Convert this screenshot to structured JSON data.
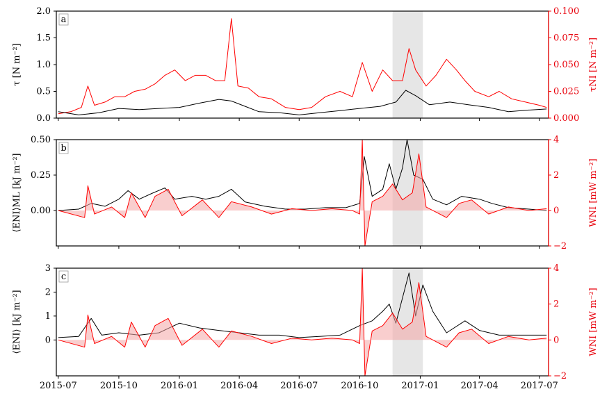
{
  "colors": {
    "left": "#000000",
    "right": "#ff0000",
    "fill": "#f4a6a6",
    "shade": "#e6e6e6",
    "raw": "#c8c8c8"
  },
  "x_ticks": [
    "2015-07",
    "2015-10",
    "2016-01",
    "2016-04",
    "2016-07",
    "2016-10",
    "2017-01",
    "2017-04",
    "2017-07"
  ],
  "chart_data": [
    {
      "type": "line",
      "panel_label": "a",
      "ylabel": "τ [N m⁻²]",
      "ylabel_right": "τNI [N m⁻²]",
      "ylim": [
        0,
        2.0
      ],
      "ylim_right": [
        0,
        0.1
      ],
      "yticks": [
        "0.0",
        "0.5",
        "1.0",
        "1.5",
        "2.0"
      ],
      "yticks_right": [
        "0.000",
        "0.025",
        "0.050",
        "0.075",
        "0.100"
      ],
      "xlim": [
        "2015-06-28",
        "2017-07-15"
      ],
      "shaded_span": [
        "2016-11-20",
        "2017-01-05"
      ],
      "series": [
        {
          "axis": "right",
          "color": "#ff0000",
          "points": [
            [
              "2015-07-01",
              0.004
            ],
            [
              "2015-07-20",
              0.006
            ],
            [
              "2015-08-05",
              0.01
            ],
            [
              "2015-08-15",
              0.03
            ],
            [
              "2015-08-25",
              0.012
            ],
            [
              "2015-09-10",
              0.015
            ],
            [
              "2015-09-25",
              0.02
            ],
            [
              "2015-10-10",
              0.02
            ],
            [
              "2015-10-25",
              0.025
            ],
            [
              "2015-11-10",
              0.027
            ],
            [
              "2015-11-25",
              0.032
            ],
            [
              "2015-12-10",
              0.04
            ],
            [
              "2015-12-25",
              0.045
            ],
            [
              "2016-01-10",
              0.035
            ],
            [
              "2016-01-25",
              0.04
            ],
            [
              "2016-02-10",
              0.04
            ],
            [
              "2016-02-25",
              0.035
            ],
            [
              "2016-03-10",
              0.035
            ],
            [
              "2016-03-20",
              0.093
            ],
            [
              "2016-03-30",
              0.03
            ],
            [
              "2016-04-15",
              0.028
            ],
            [
              "2016-05-01",
              0.02
            ],
            [
              "2016-05-20",
              0.018
            ],
            [
              "2016-06-10",
              0.01
            ],
            [
              "2016-07-01",
              0.008
            ],
            [
              "2016-07-20",
              0.01
            ],
            [
              "2016-08-10",
              0.02
            ],
            [
              "2016-09-01",
              0.025
            ],
            [
              "2016-09-20",
              0.02
            ],
            [
              "2016-10-05",
              0.052
            ],
            [
              "2016-10-20",
              0.025
            ],
            [
              "2016-11-05",
              0.045
            ],
            [
              "2016-11-20",
              0.035
            ],
            [
              "2016-12-05",
              0.035
            ],
            [
              "2016-12-15",
              0.065
            ],
            [
              "2016-12-25",
              0.045
            ],
            [
              "2017-01-10",
              0.03
            ],
            [
              "2017-01-25",
              0.04
            ],
            [
              "2017-02-10",
              0.055
            ],
            [
              "2017-02-25",
              0.045
            ],
            [
              "2017-03-10",
              0.035
            ],
            [
              "2017-03-25",
              0.025
            ],
            [
              "2017-04-15",
              0.02
            ],
            [
              "2017-05-01",
              0.025
            ],
            [
              "2017-05-20",
              0.018
            ],
            [
              "2017-06-10",
              0.015
            ],
            [
              "2017-07-01",
              0.012
            ],
            [
              "2017-07-12",
              0.01
            ]
          ]
        },
        {
          "axis": "left",
          "color": "#000000",
          "points": [
            [
              "2015-07-01",
              0.12
            ],
            [
              "2015-08-01",
              0.06
            ],
            [
              "2015-09-01",
              0.1
            ],
            [
              "2015-10-01",
              0.18
            ],
            [
              "2015-11-01",
              0.16
            ],
            [
              "2015-12-01",
              0.18
            ],
            [
              "2016-01-01",
              0.2
            ],
            [
              "2016-02-01",
              0.28
            ],
            [
              "2016-03-01",
              0.35
            ],
            [
              "2016-03-20",
              0.32
            ],
            [
              "2016-04-10",
              0.22
            ],
            [
              "2016-05-01",
              0.12
            ],
            [
              "2016-06-01",
              0.1
            ],
            [
              "2016-07-01",
              0.06
            ],
            [
              "2016-08-01",
              0.1
            ],
            [
              "2016-09-01",
              0.14
            ],
            [
              "2016-10-01",
              0.18
            ],
            [
              "2016-11-01",
              0.22
            ],
            [
              "2016-11-25",
              0.3
            ],
            [
              "2016-12-10",
              0.52
            ],
            [
              "2016-12-25",
              0.42
            ],
            [
              "2017-01-15",
              0.25
            ],
            [
              "2017-02-15",
              0.3
            ],
            [
              "2017-03-15",
              0.25
            ],
            [
              "2017-04-15",
              0.2
            ],
            [
              "2017-05-15",
              0.12
            ],
            [
              "2017-06-15",
              0.15
            ],
            [
              "2017-07-12",
              0.17
            ]
          ]
        }
      ]
    },
    {
      "type": "line",
      "panel_label": "b",
      "ylabel": "⟨ENI⟩ML [kJ m⁻²]",
      "ylabel_right": "WNI [mW m⁻²]",
      "ylim": [
        -0.25,
        0.5
      ],
      "ylim_right": [
        -2,
        4
      ],
      "yticks": [
        "0.00",
        "0.25",
        "0.50"
      ],
      "yticks_right": [
        "−2",
        "0",
        "2",
        "4"
      ],
      "xlim": [
        "2015-06-28",
        "2017-07-15"
      ],
      "shaded_span": [
        "2016-11-20",
        "2017-01-05"
      ],
      "series": [
        {
          "axis": "left",
          "color": "#000000",
          "points": [
            [
              "2015-07-01",
              0.0
            ],
            [
              "2015-08-01",
              0.01
            ],
            [
              "2015-08-20",
              0.05
            ],
            [
              "2015-09-10",
              0.03
            ],
            [
              "2015-10-01",
              0.08
            ],
            [
              "2015-10-15",
              0.14
            ],
            [
              "2015-11-01",
              0.08
            ],
            [
              "2015-11-20",
              0.12
            ],
            [
              "2015-12-10",
              0.16
            ],
            [
              "2015-12-25",
              0.08
            ],
            [
              "2016-01-20",
              0.1
            ],
            [
              "2016-02-10",
              0.08
            ],
            [
              "2016-03-01",
              0.1
            ],
            [
              "2016-03-20",
              0.15
            ],
            [
              "2016-04-10",
              0.06
            ],
            [
              "2016-05-10",
              0.03
            ],
            [
              "2016-06-10",
              0.01
            ],
            [
              "2016-07-10",
              0.01
            ],
            [
              "2016-08-10",
              0.02
            ],
            [
              "2016-09-10",
              0.02
            ],
            [
              "2016-10-01",
              0.05
            ],
            [
              "2016-10-08",
              0.38
            ],
            [
              "2016-10-20",
              0.1
            ],
            [
              "2016-11-05",
              0.15
            ],
            [
              "2016-11-15",
              0.33
            ],
            [
              "2016-11-25",
              0.15
            ],
            [
              "2016-12-05",
              0.3
            ],
            [
              "2016-12-12",
              0.5
            ],
            [
              "2016-12-22",
              0.25
            ],
            [
              "2017-01-05",
              0.22
            ],
            [
              "2017-01-20",
              0.08
            ],
            [
              "2017-02-10",
              0.04
            ],
            [
              "2017-03-05",
              0.1
            ],
            [
              "2017-04-01",
              0.08
            ],
            [
              "2017-04-20",
              0.05
            ],
            [
              "2017-05-15",
              0.02
            ],
            [
              "2017-06-15",
              0.01
            ],
            [
              "2017-07-12",
              0.0
            ]
          ]
        },
        {
          "axis": "right",
          "color": "#ff0000",
          "points": [
            [
              "2015-07-01",
              0.0
            ],
            [
              "2015-08-10",
              -0.4
            ],
            [
              "2015-08-15",
              1.4
            ],
            [
              "2015-08-25",
              -0.2
            ],
            [
              "2015-09-20",
              0.2
            ],
            [
              "2015-10-10",
              -0.4
            ],
            [
              "2015-10-20",
              1.0
            ],
            [
              "2015-11-10",
              -0.4
            ],
            [
              "2015-11-25",
              0.8
            ],
            [
              "2015-12-15",
              1.2
            ],
            [
              "2016-01-05",
              -0.3
            ],
            [
              "2016-02-05",
              0.6
            ],
            [
              "2016-03-01",
              -0.4
            ],
            [
              "2016-03-20",
              0.5
            ],
            [
              "2016-04-20",
              0.2
            ],
            [
              "2016-05-20",
              -0.2
            ],
            [
              "2016-06-20",
              0.1
            ],
            [
              "2016-07-20",
              0.0
            ],
            [
              "2016-08-20",
              0.1
            ],
            [
              "2016-09-20",
              0.0
            ],
            [
              "2016-10-01",
              -0.2
            ],
            [
              "2016-10-05",
              4.0
            ],
            [
              "2016-10-09",
              -2.0
            ],
            [
              "2016-10-20",
              0.5
            ],
            [
              "2016-11-05",
              0.8
            ],
            [
              "2016-11-20",
              1.5
            ],
            [
              "2016-12-05",
              0.6
            ],
            [
              "2016-12-20",
              1.0
            ],
            [
              "2016-12-30",
              3.2
            ],
            [
              "2017-01-10",
              0.2
            ],
            [
              "2017-02-10",
              -0.4
            ],
            [
              "2017-03-01",
              0.4
            ],
            [
              "2017-03-20",
              0.6
            ],
            [
              "2017-04-15",
              -0.2
            ],
            [
              "2017-05-15",
              0.2
            ],
            [
              "2017-06-15",
              0.0
            ],
            [
              "2017-07-12",
              0.1
            ]
          ]
        }
      ]
    },
    {
      "type": "line",
      "panel_label": "c",
      "ylabel": "⟨ENI⟩ [kJ m⁻²]",
      "ylabel_right": "WNI [mW m⁻²]",
      "ylim": [
        -1.5,
        3
      ],
      "ylim_right": [
        -2,
        4
      ],
      "yticks": [
        "0",
        "1",
        "2",
        "3"
      ],
      "yticks_right": [
        "−2",
        "0",
        "2",
        "4"
      ],
      "xlim": [
        "2015-06-28",
        "2017-07-15"
      ],
      "shaded_span": [
        "2016-11-20",
        "2017-01-05"
      ],
      "series": [
        {
          "axis": "left",
          "color": "#000000",
          "points": [
            [
              "2015-07-01",
              0.1
            ],
            [
              "2015-08-01",
              0.15
            ],
            [
              "2015-08-20",
              0.9
            ],
            [
              "2015-09-05",
              0.2
            ],
            [
              "2015-10-01",
              0.3
            ],
            [
              "2015-11-01",
              0.2
            ],
            [
              "2015-12-01",
              0.3
            ],
            [
              "2016-01-01",
              0.7
            ],
            [
              "2016-02-01",
              0.5
            ],
            [
              "2016-03-01",
              0.4
            ],
            [
              "2016-04-01",
              0.3
            ],
            [
              "2016-05-01",
              0.2
            ],
            [
              "2016-06-01",
              0.2
            ],
            [
              "2016-07-01",
              0.1
            ],
            [
              "2016-08-01",
              0.15
            ],
            [
              "2016-09-01",
              0.2
            ],
            [
              "2016-10-01",
              0.6
            ],
            [
              "2016-10-20",
              0.8
            ],
            [
              "2016-11-05",
              1.2
            ],
            [
              "2016-11-15",
              1.5
            ],
            [
              "2016-11-25",
              0.7
            ],
            [
              "2016-12-15",
              2.8
            ],
            [
              "2016-12-25",
              1.0
            ],
            [
              "2017-01-05",
              2.3
            ],
            [
              "2017-01-20",
              1.2
            ],
            [
              "2017-02-10",
              0.3
            ],
            [
              "2017-03-10",
              0.8
            ],
            [
              "2017-04-01",
              0.4
            ],
            [
              "2017-05-01",
              0.2
            ],
            [
              "2017-06-01",
              0.2
            ],
            [
              "2017-07-12",
              0.2
            ]
          ]
        },
        {
          "axis": "right",
          "color": "#ff0000",
          "points": [
            [
              "2015-07-01",
              0.0
            ],
            [
              "2015-08-10",
              -0.4
            ],
            [
              "2015-08-15",
              1.4
            ],
            [
              "2015-08-25",
              -0.2
            ],
            [
              "2015-09-20",
              0.2
            ],
            [
              "2015-10-10",
              -0.4
            ],
            [
              "2015-10-20",
              1.0
            ],
            [
              "2015-11-10",
              -0.4
            ],
            [
              "2015-11-25",
              0.8
            ],
            [
              "2015-12-15",
              1.2
            ],
            [
              "2016-01-05",
              -0.3
            ],
            [
              "2016-02-05",
              0.6
            ],
            [
              "2016-03-01",
              -0.4
            ],
            [
              "2016-03-20",
              0.5
            ],
            [
              "2016-04-20",
              0.2
            ],
            [
              "2016-05-20",
              -0.2
            ],
            [
              "2016-06-20",
              0.1
            ],
            [
              "2016-07-20",
              0.0
            ],
            [
              "2016-08-20",
              0.1
            ],
            [
              "2016-09-20",
              0.0
            ],
            [
              "2016-10-01",
              -0.2
            ],
            [
              "2016-10-05",
              4.0
            ],
            [
              "2016-10-09",
              -2.0
            ],
            [
              "2016-10-20",
              0.5
            ],
            [
              "2016-11-05",
              0.8
            ],
            [
              "2016-11-20",
              1.5
            ],
            [
              "2016-12-05",
              0.6
            ],
            [
              "2016-12-20",
              1.0
            ],
            [
              "2016-12-30",
              3.2
            ],
            [
              "2017-01-10",
              0.2
            ],
            [
              "2017-02-10",
              -0.4
            ],
            [
              "2017-03-01",
              0.4
            ],
            [
              "2017-03-20",
              0.6
            ],
            [
              "2017-04-15",
              -0.2
            ],
            [
              "2017-05-15",
              0.2
            ],
            [
              "2017-06-15",
              0.0
            ],
            [
              "2017-07-12",
              0.1
            ]
          ]
        }
      ]
    }
  ]
}
